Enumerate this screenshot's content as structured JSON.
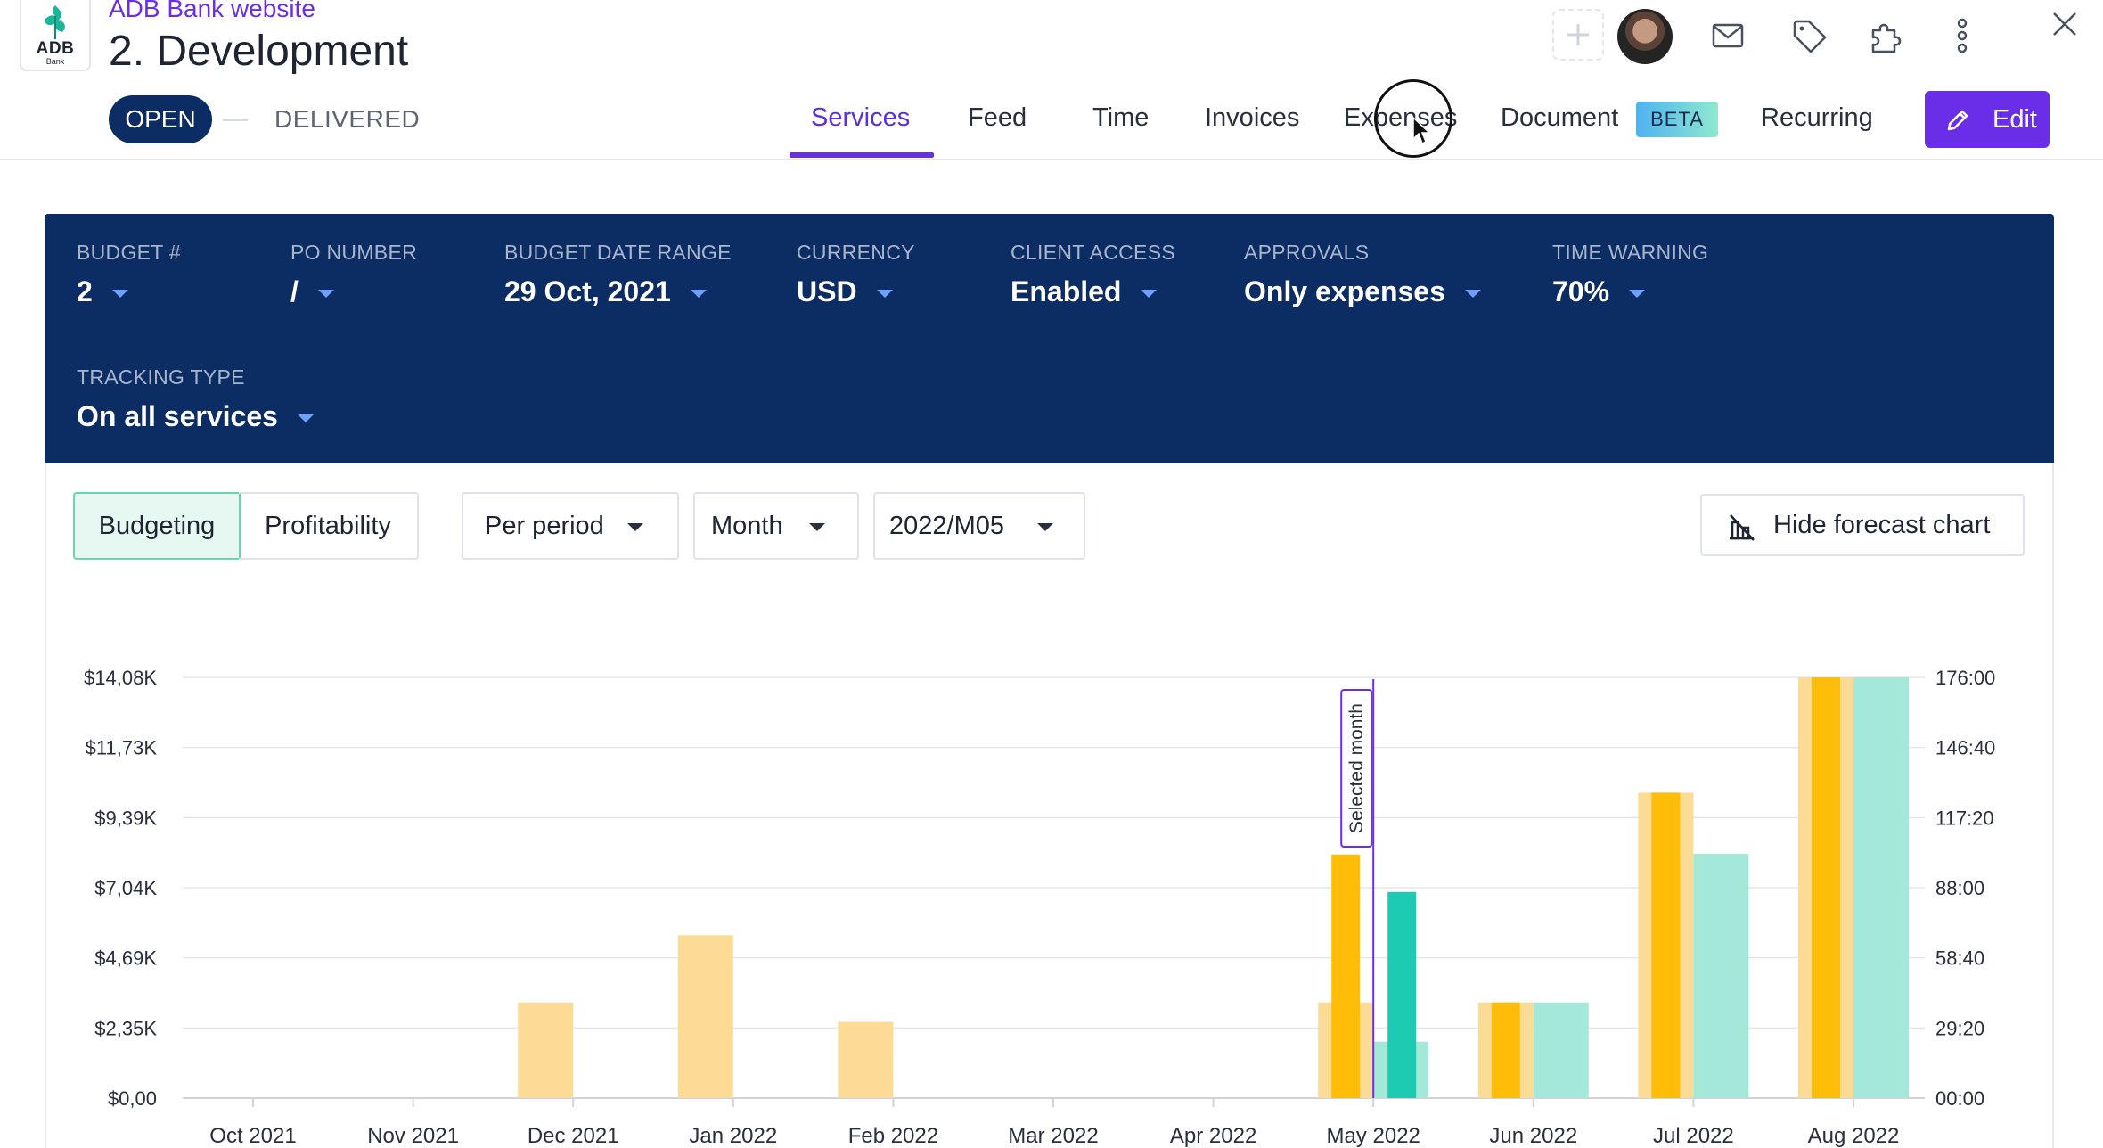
{
  "header": {
    "logo_text": "ADB",
    "logo_subtext": "Bank",
    "project_link": "ADB Bank website",
    "title": "2. Development",
    "status_open": "OPEN",
    "status_delivered": "DELIVERED",
    "tabs": [
      {
        "label": "Services",
        "active": true
      },
      {
        "label": "Feed"
      },
      {
        "label": "Time"
      },
      {
        "label": "Invoices"
      },
      {
        "label": "Expenses"
      },
      {
        "label": "Document"
      },
      {
        "label": "Recurring"
      }
    ],
    "beta_badge": "BETA",
    "edit_label": "Edit",
    "icons": [
      "plus-icon",
      "avatar",
      "mail-icon",
      "tag-icon",
      "puzzle-icon",
      "more-vertical-icon",
      "close-icon"
    ]
  },
  "budget": {
    "fields": [
      {
        "label": "BUDGET #",
        "value": "2"
      },
      {
        "label": "PO NUMBER",
        "value": "/"
      },
      {
        "label": "BUDGET DATE RANGE",
        "value": "29 Oct, 2021"
      },
      {
        "label": "CURRENCY",
        "value": "USD"
      },
      {
        "label": "CLIENT ACCESS",
        "value": "Enabled"
      },
      {
        "label": "APPROVALS",
        "value": "Only expenses"
      },
      {
        "label": "TIME WARNING",
        "value": "70%"
      },
      {
        "label": "TRACKING TYPE",
        "value": "On all services"
      }
    ]
  },
  "controls": {
    "budgeting": "Budgeting",
    "profitability": "Profitability",
    "period": "Per period",
    "granularity": "Month",
    "selected_period": "2022/M05",
    "hide_forecast": "Hide forecast chart"
  },
  "colors": {
    "accent": "#6a2ee8",
    "navy": "#0c2d63",
    "amount_light": "#fcdc94",
    "amount_dark": "#ffbd0a",
    "time_light": "#a4e8da",
    "time_dark": "#1dcbb3"
  },
  "chart_data": {
    "type": "bar",
    "categories": [
      "Oct 2021",
      "Nov 2021",
      "Dec 2021",
      "Jan 2022",
      "Feb 2022",
      "Mar 2022",
      "Apr 2022",
      "May 2022",
      "Jun 2022",
      "Jul 2022",
      "Aug 2022"
    ],
    "y_left": {
      "ticks": [
        "$0,00",
        "$2,35K",
        "$4,69K",
        "$7,04K",
        "$9,39K",
        "$11,73K",
        "$14,08K"
      ],
      "range": [
        0,
        14080
      ]
    },
    "y_right": {
      "ticks": [
        "00:00",
        "29:20",
        "58:40",
        "88:00",
        "117:20",
        "146:40",
        "176:00"
      ],
      "range_hours": [
        0,
        176
      ]
    },
    "series": [
      {
        "values": [
          0,
          0,
          3200,
          5450,
          2550,
          0,
          0,
          3200,
          3200,
          10220,
          14080
        ]
      },
      {
        "values": [
          0,
          0,
          0,
          0,
          0,
          0,
          0,
          8150,
          3200,
          10220,
          14080
        ]
      },
      {
        "values": [
          0,
          0,
          0,
          0,
          0,
          0,
          0,
          23.6,
          40,
          102.2,
          176
        ]
      },
      {
        "values": [
          0,
          0,
          0,
          0,
          0,
          0,
          0,
          86.2,
          0,
          0,
          0
        ]
      }
    ],
    "selected_category": "May 2022",
    "selected_label": "Selected month",
    "grid": true
  }
}
